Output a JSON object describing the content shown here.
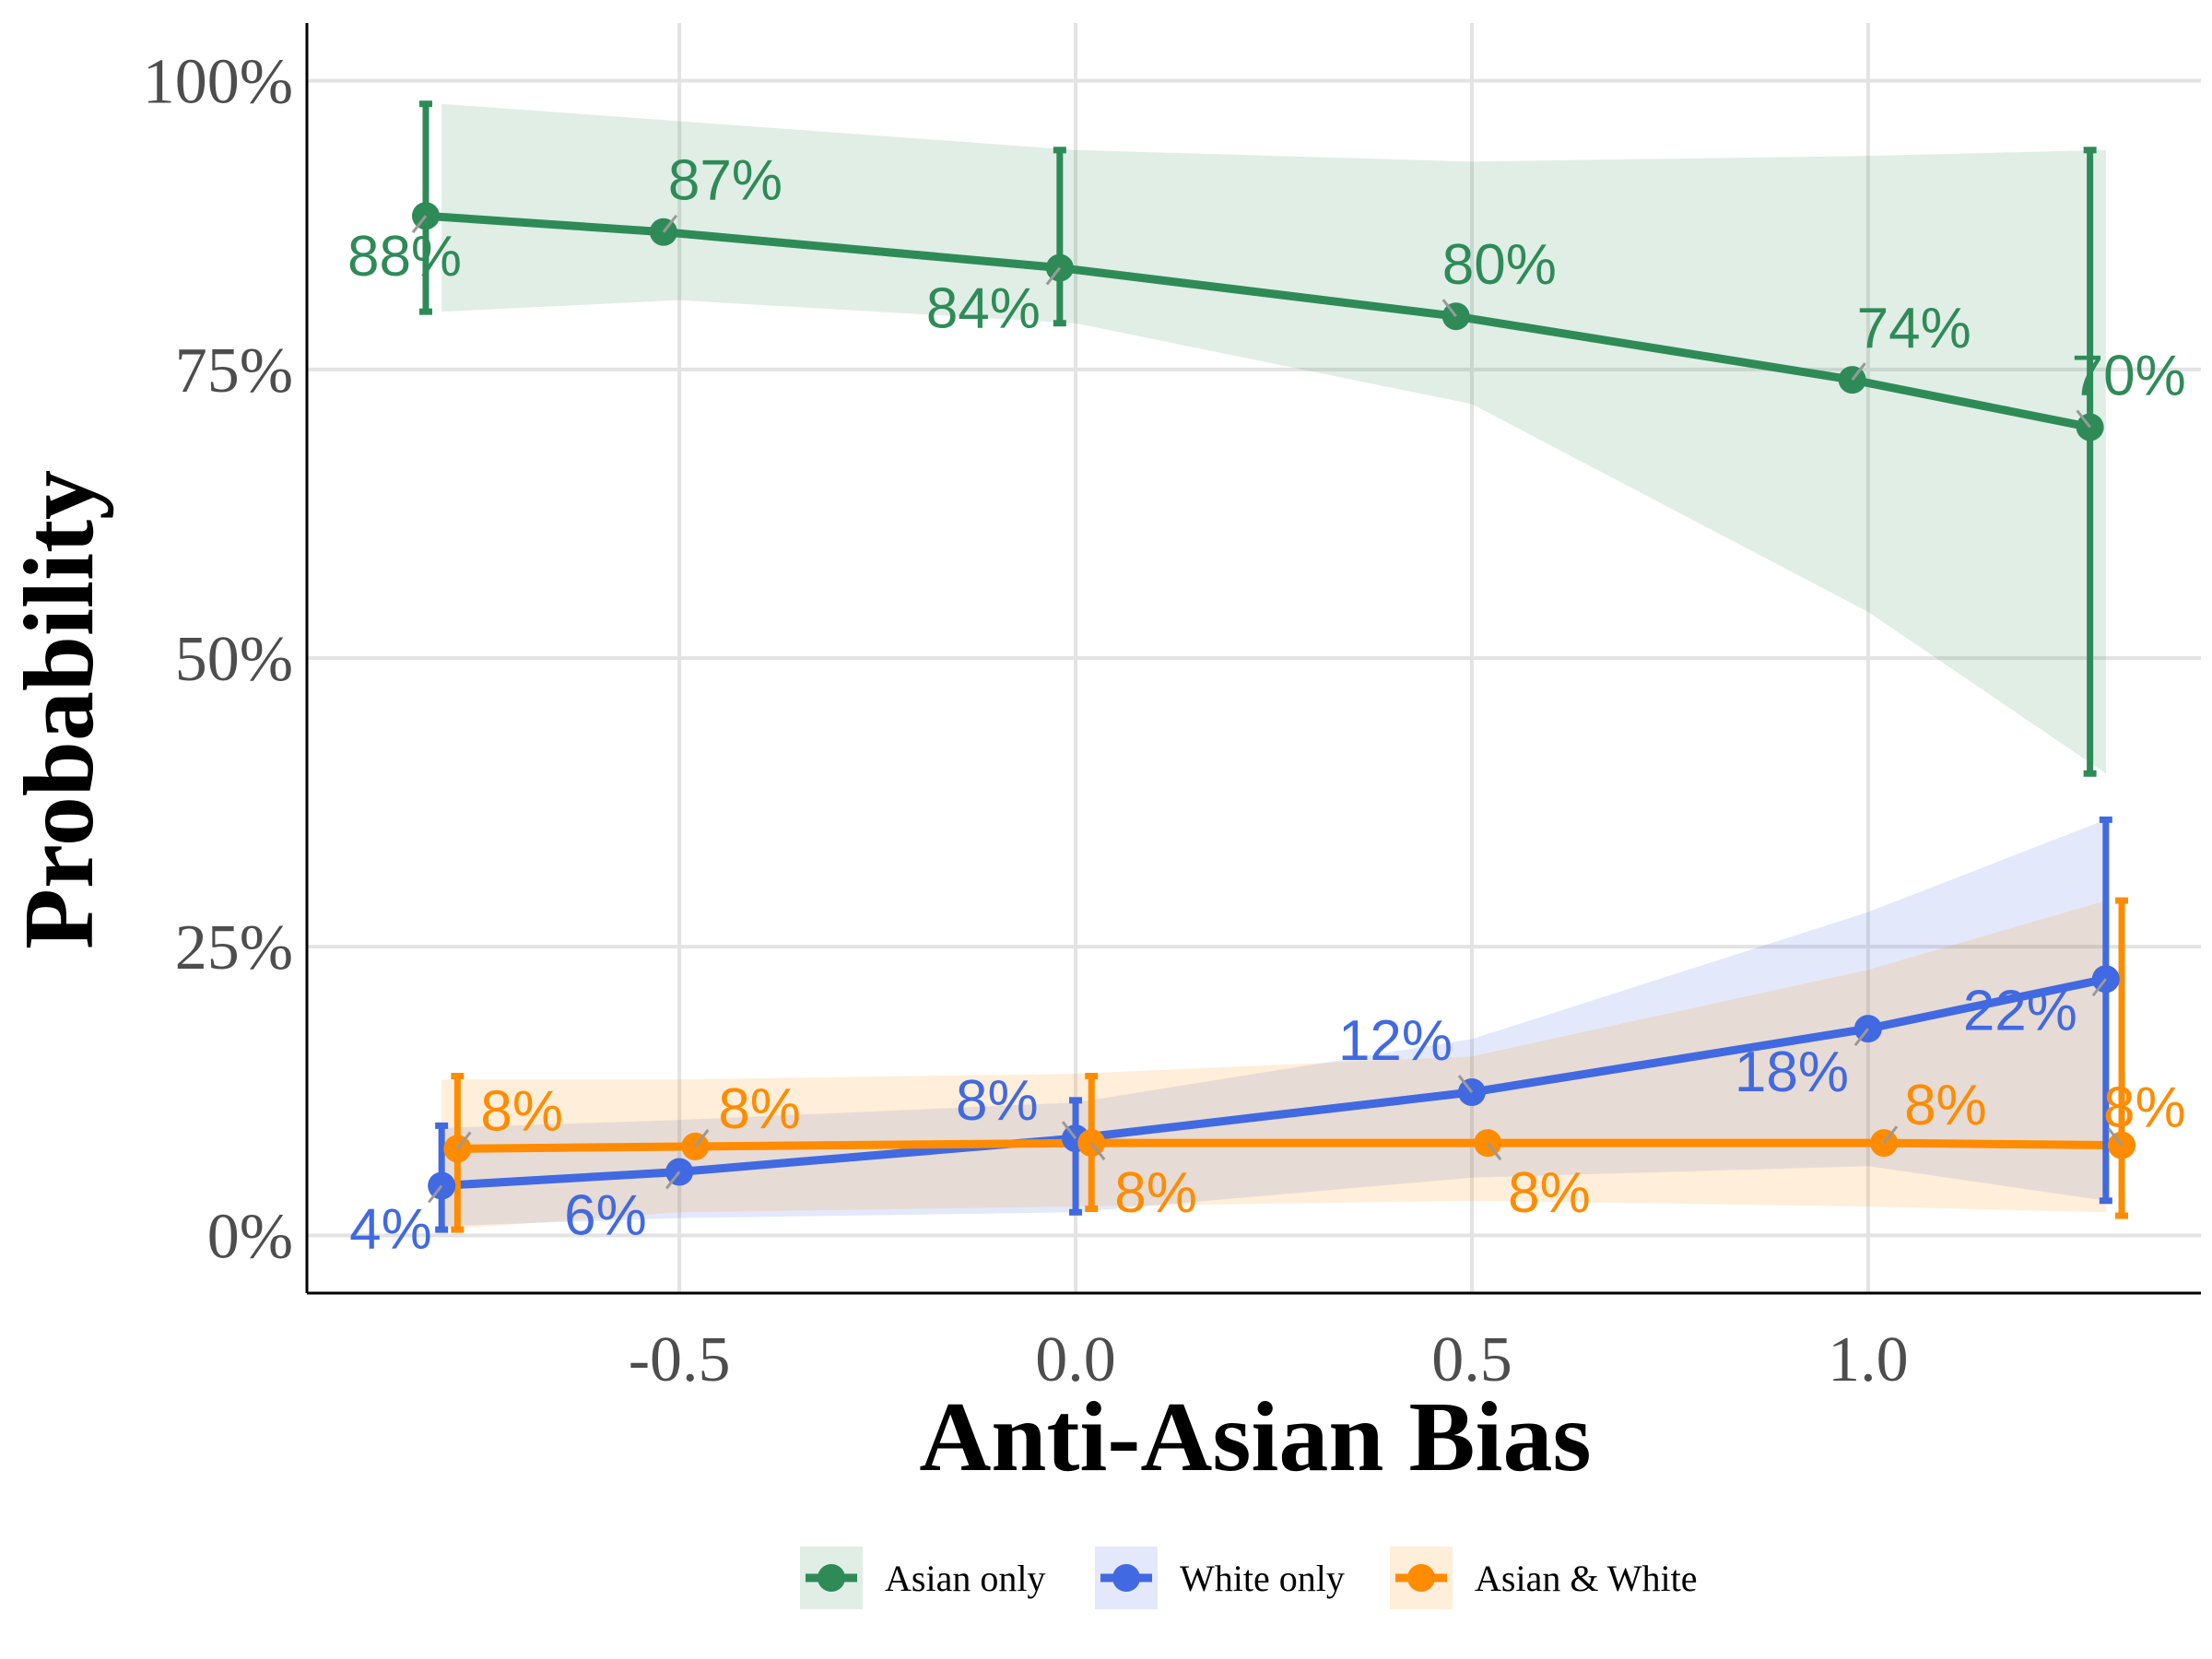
{
  "chart_data": {
    "type": "line",
    "title": "",
    "xlabel": "Anti-Asian Bias",
    "ylabel": "Probability",
    "xlim": [
      -0.97,
      1.42
    ],
    "ylim": [
      -0.05,
      1.05
    ],
    "x_ticks": [
      {
        "value": -0.5,
        "label": "-0.5"
      },
      {
        "value": 0.0,
        "label": "0.0"
      },
      {
        "value": 0.5,
        "label": "0.5"
      },
      {
        "value": 1.0,
        "label": "1.0"
      }
    ],
    "y_ticks": [
      {
        "value": 0.0,
        "label": "0%"
      },
      {
        "value": 0.25,
        "label": "25%"
      },
      {
        "value": 0.5,
        "label": "50%"
      },
      {
        "value": 0.75,
        "label": "75%"
      },
      {
        "value": 1.0,
        "label": "100%"
      }
    ],
    "grid": true,
    "legend_position": "bottom",
    "series": [
      {
        "name": "Asian only",
        "color": "#2e8b57",
        "points": [
          {
            "x": -0.82,
            "y": 0.883,
            "label": "88%"
          },
          {
            "x": -0.52,
            "y": 0.869,
            "label": "87%"
          },
          {
            "x": -0.02,
            "y": 0.838,
            "label": "84%"
          },
          {
            "x": 0.48,
            "y": 0.796,
            "label": "80%"
          },
          {
            "x": 0.98,
            "y": 0.741,
            "label": "74%"
          },
          {
            "x": 1.28,
            "y": 0.7,
            "label": "70%"
          }
        ],
        "ribbon": [
          {
            "x": -0.8,
            "lower": 0.8,
            "upper": 0.98
          },
          {
            "x": -0.5,
            "lower": 0.81,
            "upper": 0.965
          },
          {
            "x": 0.0,
            "lower": 0.79,
            "upper": 0.94
          },
          {
            "x": 0.5,
            "lower": 0.72,
            "upper": 0.93
          },
          {
            "x": 1.0,
            "lower": 0.54,
            "upper": 0.935
          },
          {
            "x": 1.3,
            "lower": 0.4,
            "upper": 0.94
          }
        ],
        "error_bars": [
          {
            "x": -0.82,
            "lower": 0.8,
            "upper": 0.98
          },
          {
            "x": -0.02,
            "lower": 0.79,
            "upper": 0.94
          },
          {
            "x": 1.28,
            "lower": 0.4,
            "upper": 0.94
          }
        ]
      },
      {
        "name": "White only",
        "color": "#4169e1",
        "points": [
          {
            "x": -0.8,
            "y": 0.043,
            "label": "4%"
          },
          {
            "x": -0.5,
            "y": 0.055,
            "label": "6%"
          },
          {
            "x": 0.0,
            "y": 0.084,
            "label": "8%"
          },
          {
            "x": 0.5,
            "y": 0.124,
            "label": "12%"
          },
          {
            "x": 1.0,
            "y": 0.179,
            "label": "18%"
          },
          {
            "x": 1.3,
            "y": 0.222,
            "label": "22%"
          }
        ],
        "ribbon": [
          {
            "x": -0.8,
            "lower": 0.008,
            "upper": 0.093
          },
          {
            "x": -0.5,
            "lower": 0.015,
            "upper": 0.1
          },
          {
            "x": 0.0,
            "lower": 0.02,
            "upper": 0.115
          },
          {
            "x": 0.5,
            "lower": 0.05,
            "upper": 0.17
          },
          {
            "x": 1.0,
            "lower": 0.06,
            "upper": 0.28
          },
          {
            "x": 1.3,
            "lower": 0.03,
            "upper": 0.36
          }
        ],
        "error_bars": [
          {
            "x": -0.8,
            "lower": 0.005,
            "upper": 0.095
          },
          {
            "x": 0.0,
            "lower": 0.02,
            "upper": 0.117
          },
          {
            "x": 1.3,
            "lower": 0.03,
            "upper": 0.36
          }
        ]
      },
      {
        "name": "Asian & White",
        "color": "#ff8c00",
        "points": [
          {
            "x": -0.78,
            "y": 0.075,
            "label": "8%"
          },
          {
            "x": -0.48,
            "y": 0.077,
            "label": "8%"
          },
          {
            "x": 0.02,
            "y": 0.08,
            "label": "8%"
          },
          {
            "x": 0.52,
            "y": 0.08,
            "label": "8%"
          },
          {
            "x": 1.02,
            "y": 0.08,
            "label": "8%"
          },
          {
            "x": 1.32,
            "y": 0.078,
            "label": "8%"
          }
        ],
        "ribbon": [
          {
            "x": -0.8,
            "lower": 0.005,
            "upper": 0.135
          },
          {
            "x": -0.5,
            "lower": 0.02,
            "upper": 0.135
          },
          {
            "x": 0.0,
            "lower": 0.025,
            "upper": 0.14
          },
          {
            "x": 0.5,
            "lower": 0.03,
            "upper": 0.155
          },
          {
            "x": 1.0,
            "lower": 0.025,
            "upper": 0.23
          },
          {
            "x": 1.3,
            "lower": 0.02,
            "upper": 0.29
          }
        ],
        "error_bars": [
          {
            "x": -0.78,
            "lower": 0.005,
            "upper": 0.138
          },
          {
            "x": 0.02,
            "lower": 0.023,
            "upper": 0.138
          },
          {
            "x": 1.32,
            "lower": 0.017,
            "upper": 0.29
          }
        ]
      }
    ]
  }
}
